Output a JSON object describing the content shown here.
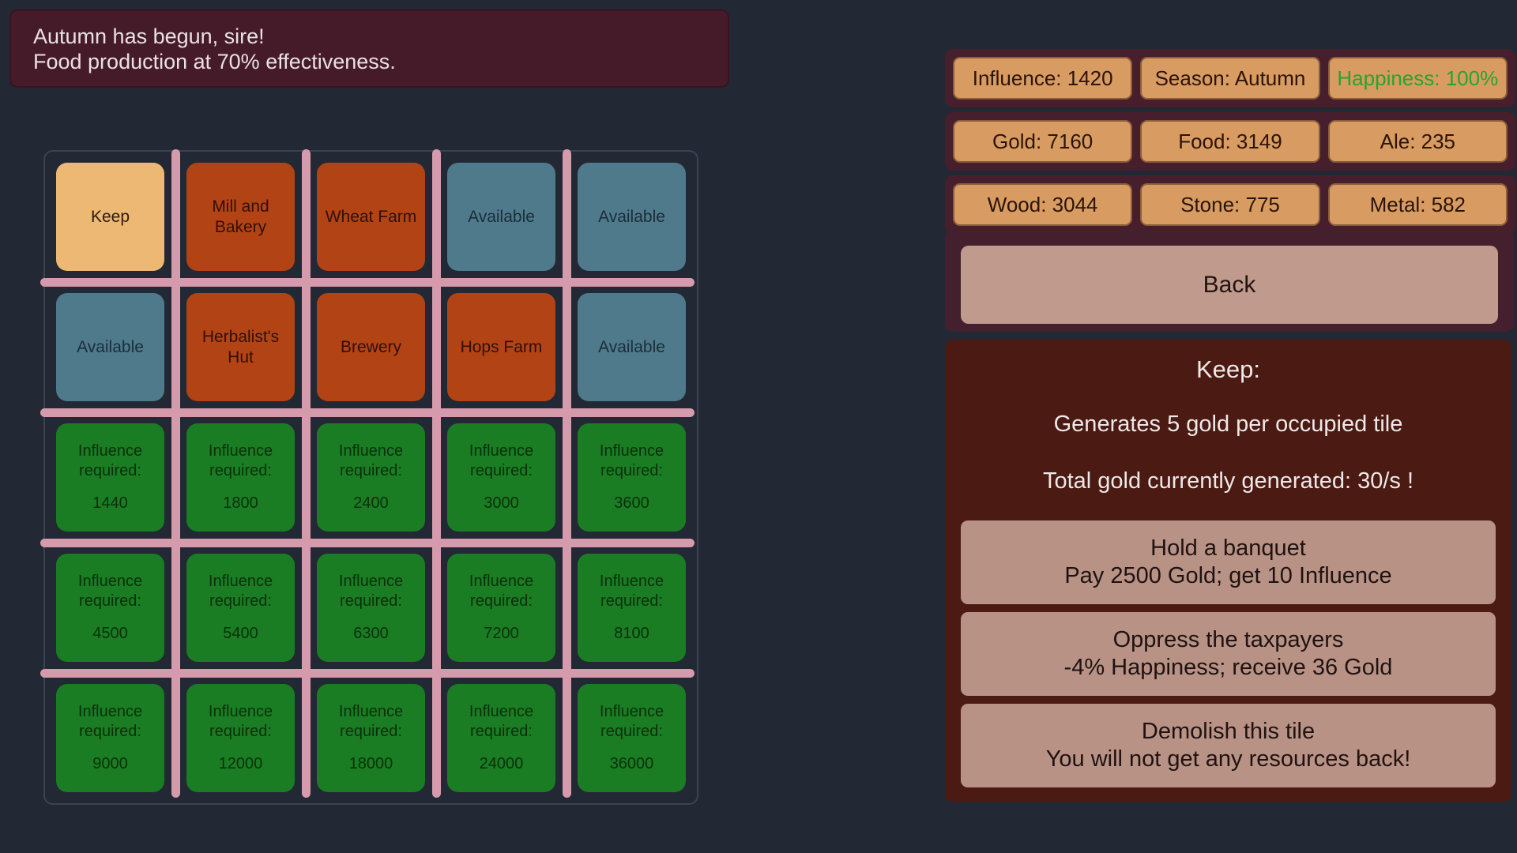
{
  "notification": {
    "line1": "Autumn has begun, sire!",
    "line2": "Food production at 70% effectiveness."
  },
  "grid": {
    "tiles": [
      {
        "name": "tile-keep",
        "type": "keep",
        "label": "Keep"
      },
      {
        "name": "tile-mill-and-bakery",
        "type": "building",
        "label": "Mill and Bakery"
      },
      {
        "name": "tile-wheat-farm",
        "type": "building",
        "label": "Wheat Farm"
      },
      {
        "name": "tile-available-r1c4",
        "type": "available",
        "label": "Available"
      },
      {
        "name": "tile-available-r1c5",
        "type": "available",
        "label": "Available"
      },
      {
        "name": "tile-available-r2c1",
        "type": "available",
        "label": "Available"
      },
      {
        "name": "tile-herbalists-hut",
        "type": "building",
        "label": "Herbalist's Hut"
      },
      {
        "name": "tile-brewery",
        "type": "building",
        "label": "Brewery"
      },
      {
        "name": "tile-hops-farm",
        "type": "building",
        "label": "Hops Farm"
      },
      {
        "name": "tile-available-r2c5",
        "type": "available",
        "label": "Available"
      },
      {
        "name": "tile-locked-1440",
        "type": "locked",
        "label": "Influence required:",
        "value": "1440"
      },
      {
        "name": "tile-locked-1800",
        "type": "locked",
        "label": "Influence required:",
        "value": "1800"
      },
      {
        "name": "tile-locked-2400",
        "type": "locked",
        "label": "Influence required:",
        "value": "2400"
      },
      {
        "name": "tile-locked-3000",
        "type": "locked",
        "label": "Influence required:",
        "value": "3000"
      },
      {
        "name": "tile-locked-3600",
        "type": "locked",
        "label": "Influence required:",
        "value": "3600"
      },
      {
        "name": "tile-locked-4500",
        "type": "locked",
        "label": "Influence required:",
        "value": "4500"
      },
      {
        "name": "tile-locked-5400",
        "type": "locked",
        "label": "Influence required:",
        "value": "5400"
      },
      {
        "name": "tile-locked-6300",
        "type": "locked",
        "label": "Influence required:",
        "value": "6300"
      },
      {
        "name": "tile-locked-7200",
        "type": "locked",
        "label": "Influence required:",
        "value": "7200"
      },
      {
        "name": "tile-locked-8100",
        "type": "locked",
        "label": "Influence required:",
        "value": "8100"
      },
      {
        "name": "tile-locked-9000",
        "type": "locked",
        "label": "Influence required:",
        "value": "9000"
      },
      {
        "name": "tile-locked-12000",
        "type": "locked",
        "label": "Influence required:",
        "value": "12000"
      },
      {
        "name": "tile-locked-18000",
        "type": "locked",
        "label": "Influence required:",
        "value": "18000"
      },
      {
        "name": "tile-locked-24000",
        "type": "locked",
        "label": "Influence required:",
        "value": "24000"
      },
      {
        "name": "tile-locked-36000",
        "type": "locked",
        "label": "Influence required:",
        "value": "36000"
      }
    ]
  },
  "resources": {
    "rows": [
      [
        {
          "name": "influence",
          "label": "Influence: 1420"
        },
        {
          "name": "season",
          "label": "Season: Autumn"
        },
        {
          "name": "happiness",
          "label": "Happiness: 100%",
          "color": "#29a42b"
        }
      ],
      [
        {
          "name": "gold",
          "label": "Gold: 7160"
        },
        {
          "name": "food",
          "label": "Food: 3149"
        },
        {
          "name": "ale",
          "label": "Ale: 235"
        }
      ],
      [
        {
          "name": "wood",
          "label": "Wood: 3044"
        },
        {
          "name": "stone",
          "label": "Stone: 775"
        },
        {
          "name": "metal",
          "label": "Metal: 582"
        }
      ]
    ]
  },
  "panel": {
    "back_label": "Back",
    "info": {
      "title": "Keep:",
      "lines": [
        "Generates 5 gold per occupied tile",
        "Total gold currently generated: 30/s !"
      ]
    },
    "actions": [
      {
        "name": "hold-banquet-button",
        "line1": "Hold a banquet",
        "line2": "Pay 2500 Gold; get 10 Influence"
      },
      {
        "name": "oppress-taxpayers-button",
        "line1": "Oppress the taxpayers",
        "line2": "-4% Happiness; receive 36 Gold"
      },
      {
        "name": "demolish-tile-button",
        "line1": "Demolish this tile",
        "line2": "You will not get any resources back!"
      }
    ]
  }
}
